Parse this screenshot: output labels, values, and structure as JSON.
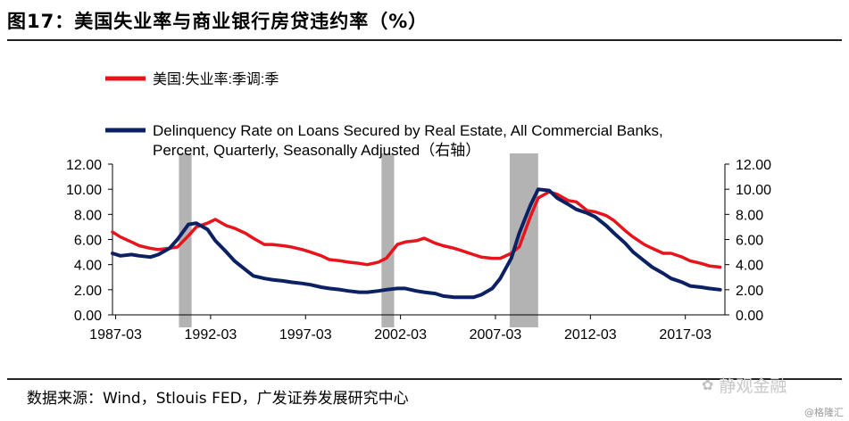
{
  "header": {
    "title": "图17：美国失业率与商业银行房贷违约率（%）"
  },
  "footer": {
    "source": "数据来源：Wind，Stlouis FED，广发证券发展研究中心"
  },
  "watermark": {
    "brand": "静观金融",
    "credit": "@格隆汇"
  },
  "chart_data": {
    "type": "line",
    "x_ticks": [
      "1987-03",
      "1992-03",
      "1997-03",
      "2002-03",
      "2007-03",
      "2012-03",
      "2017-03"
    ],
    "y_left": {
      "ticks": [
        "0.00",
        "2.00",
        "4.00",
        "6.00",
        "8.00",
        "10.00",
        "12.00"
      ],
      "range": [
        0,
        12
      ]
    },
    "y_right": {
      "ticks": [
        "0.00",
        "2.00",
        "4.00",
        "6.00",
        "8.00",
        "10.00",
        "12.00"
      ],
      "range": [
        0,
        12
      ]
    },
    "x_range": [
      "1987-01",
      "2019-04"
    ],
    "recessions": [
      [
        "1990-07",
        "1991-03"
      ],
      [
        "2001-03",
        "2001-11"
      ],
      [
        "2007-12",
        "2009-06"
      ]
    ],
    "legend": [
      {
        "label": "美国:失业率:季调:季",
        "color": "#e8141c"
      },
      {
        "label": "Delinquency Rate on Loans Secured by Real Estate, All Commercial Banks,",
        "label2": "Percent, Quarterly, Seasonally Adjusted（右轴）",
        "color": "#0c2163"
      }
    ],
    "series": [
      {
        "name": "美国:失业率:季调:季",
        "axis": "left",
        "color": "#e8141c",
        "x": [
          "1987-01",
          "1987-06",
          "1988-01",
          "1988-06",
          "1989-01",
          "1989-06",
          "1990-01",
          "1990-06",
          "1991-01",
          "1991-06",
          "1992-01",
          "1992-06",
          "1993-01",
          "1993-06",
          "1994-01",
          "1994-06",
          "1995-01",
          "1995-06",
          "1996-01",
          "1996-06",
          "1997-01",
          "1997-06",
          "1998-01",
          "1998-06",
          "1999-01",
          "1999-06",
          "2000-01",
          "2000-06",
          "2001-01",
          "2001-06",
          "2002-01",
          "2002-06",
          "2003-01",
          "2003-06",
          "2004-01",
          "2004-06",
          "2005-01",
          "2005-06",
          "2006-01",
          "2006-06",
          "2007-01",
          "2007-06",
          "2008-01",
          "2008-06",
          "2009-01",
          "2009-06",
          "2010-01",
          "2010-06",
          "2011-01",
          "2011-06",
          "2012-01",
          "2012-06",
          "2013-01",
          "2013-06",
          "2014-01",
          "2014-06",
          "2015-01",
          "2015-06",
          "2016-01",
          "2016-06",
          "2017-01",
          "2017-06",
          "2018-01",
          "2018-06",
          "2019-01"
        ],
        "values": [
          6.6,
          6.2,
          5.8,
          5.5,
          5.3,
          5.2,
          5.3,
          5.4,
          6.3,
          7.0,
          7.3,
          7.6,
          7.1,
          6.9,
          6.5,
          6.1,
          5.6,
          5.6,
          5.5,
          5.4,
          5.2,
          5.0,
          4.7,
          4.4,
          4.3,
          4.2,
          4.1,
          4.0,
          4.2,
          4.5,
          5.6,
          5.8,
          5.9,
          6.1,
          5.7,
          5.5,
          5.3,
          5.1,
          4.8,
          4.6,
          4.5,
          4.5,
          4.9,
          5.4,
          7.8,
          9.3,
          9.8,
          9.6,
          9.1,
          9.0,
          8.3,
          8.2,
          7.9,
          7.5,
          6.7,
          6.2,
          5.6,
          5.3,
          4.9,
          4.9,
          4.6,
          4.3,
          4.1,
          3.9,
          3.8
        ]
      },
      {
        "name": "Delinquency Rate on Loans Secured by Real Estate, All Commercial Banks, Percent, Quarterly, Seasonally Adjusted",
        "axis": "right",
        "color": "#0c2163",
        "x": [
          "1987-01",
          "1987-06",
          "1988-01",
          "1988-06",
          "1989-01",
          "1989-06",
          "1990-01",
          "1990-06",
          "1991-01",
          "1991-06",
          "1992-01",
          "1992-06",
          "1993-01",
          "1993-06",
          "1994-01",
          "1994-06",
          "1995-01",
          "1995-06",
          "1996-01",
          "1996-06",
          "1997-01",
          "1997-06",
          "1998-01",
          "1998-06",
          "1999-01",
          "1999-06",
          "2000-01",
          "2000-06",
          "2001-01",
          "2001-06",
          "2002-01",
          "2002-06",
          "2003-01",
          "2003-06",
          "2004-01",
          "2004-06",
          "2005-01",
          "2005-06",
          "2006-01",
          "2006-06",
          "2007-01",
          "2007-06",
          "2008-01",
          "2008-06",
          "2009-01",
          "2009-06",
          "2010-01",
          "2010-06",
          "2011-01",
          "2011-06",
          "2012-01",
          "2012-06",
          "2013-01",
          "2013-06",
          "2014-01",
          "2014-06",
          "2015-01",
          "2015-06",
          "2016-01",
          "2016-06",
          "2017-01",
          "2017-06",
          "2018-01",
          "2018-06",
          "2019-01"
        ],
        "values": [
          4.9,
          4.7,
          4.8,
          4.7,
          4.6,
          4.8,
          5.3,
          6.0,
          7.2,
          7.3,
          6.8,
          5.9,
          5.0,
          4.3,
          3.6,
          3.1,
          2.9,
          2.8,
          2.7,
          2.6,
          2.5,
          2.4,
          2.2,
          2.1,
          2.0,
          1.9,
          1.8,
          1.8,
          1.9,
          2.0,
          2.1,
          2.1,
          1.9,
          1.8,
          1.7,
          1.5,
          1.4,
          1.4,
          1.4,
          1.6,
          2.1,
          2.9,
          4.5,
          6.5,
          8.7,
          10.0,
          9.9,
          9.3,
          8.8,
          8.4,
          8.1,
          7.8,
          7.1,
          6.5,
          5.7,
          5.0,
          4.3,
          3.8,
          3.3,
          2.9,
          2.6,
          2.3,
          2.2,
          2.1,
          2.0
        ]
      }
    ]
  }
}
